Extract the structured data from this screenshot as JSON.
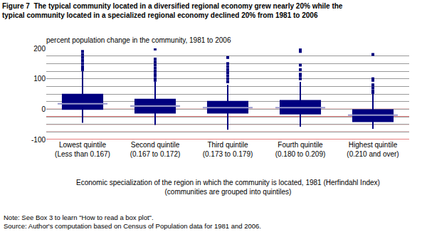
{
  "chart_data": {
    "type": "box",
    "title": "Figure 7  The typical community located in a diversified regional economy grew nearly 20% while the\ntypical community located in a specialized regional economy declined 20% from 1981 to 2006",
    "y_label": "percent population change in the community, 1981 to 2006",
    "x_label": "Economic specialization of the region in which the community is located, 1981 (Herfindahl Index)\n(communities are grouped into quintiles)",
    "notes": [
      "Note: See Box 3 to learn \"How to read a box plot\".",
      "Source: Author's computation based on Census of Population data for 1981 and 2006."
    ],
    "categories": [
      "Lowest quintile\n(Less than 0.167)",
      "Second quintile\n(0.167 to 0.172)",
      "Third quintile\n(0.173 to 0.179)",
      "Fourth quintile\n(0.180 to 0.209)",
      "Highest quintile\n(0.210 and over)"
    ],
    "color": "#00007f",
    "lower_whisker": [
      -45,
      -52,
      -68,
      -58,
      -65
    ],
    "q1": [
      0,
      -12,
      -12,
      -15,
      -40
    ],
    "median": [
      18,
      10,
      5,
      5,
      -20
    ],
    "q3": [
      48,
      32,
      25,
      28,
      -3
    ],
    "upper_whisker": [
      125,
      90,
      80,
      90,
      50
    ],
    "outliers": [
      [
        130,
        135,
        140,
        150,
        160,
        170,
        180,
        190
      ],
      [
        95,
        100,
        110,
        115,
        125,
        135,
        145,
        155,
        165,
        198
      ],
      [
        90,
        100,
        110,
        120,
        130,
        140,
        150,
        170
      ],
      [
        100,
        110,
        115,
        130,
        145,
        190,
        195
      ],
      [
        55,
        60,
        70,
        80,
        95,
        100,
        180
      ]
    ],
    "ylim": [
      -100,
      200
    ],
    "yticks": [
      -100,
      0,
      100,
      200
    ],
    "grid": true
  }
}
